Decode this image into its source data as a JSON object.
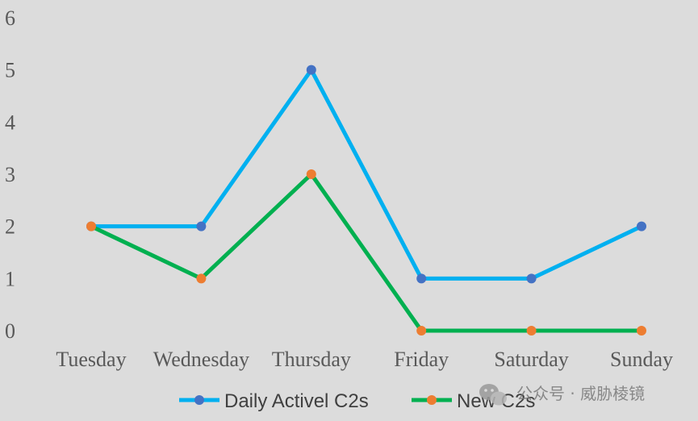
{
  "chart_data": {
    "type": "line",
    "categories": [
      "Tuesday",
      "Wednesday",
      "Thursday",
      "Friday",
      "Saturday",
      "Sunday"
    ],
    "series": [
      {
        "name": "Daily Activel C2s",
        "values": [
          2,
          2,
          5,
          1,
          1,
          2
        ],
        "line_color": "#00b0f0",
        "marker_color": "#4472c4"
      },
      {
        "name": "New C2s",
        "values": [
          2,
          1,
          3,
          0,
          0,
          0
        ],
        "line_color": "#00b050",
        "marker_color": "#ed7d31"
      }
    ],
    "yticks": [
      "0",
      "1",
      "2",
      "3",
      "4",
      "5",
      "6"
    ],
    "ylim": [
      0,
      6
    ],
    "grid": false,
    "legend_position": "bottom"
  },
  "watermark": {
    "text": "公众号 · 威胁棱镜",
    "icon": "wechat-icon"
  }
}
